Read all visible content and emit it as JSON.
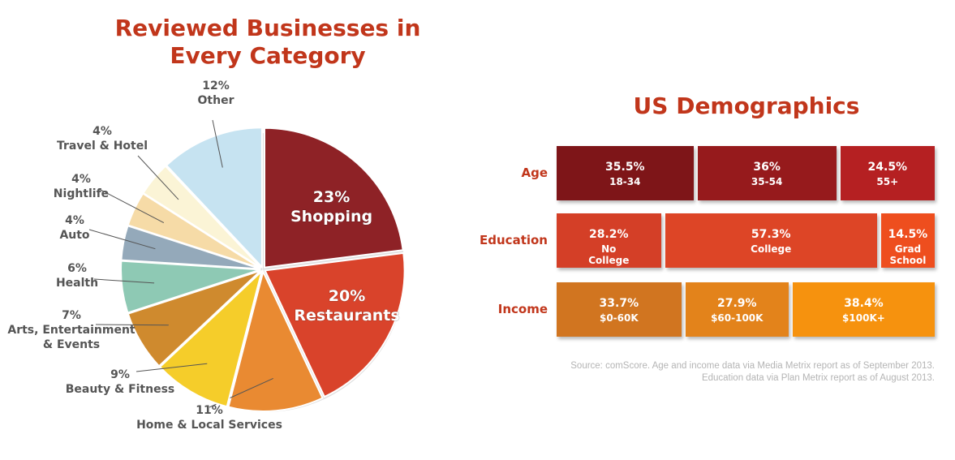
{
  "charts": {
    "categories": {
      "title": "Reviewed Businesses in Every Category"
    },
    "demographics": {
      "title": "US Demographics",
      "source": "Source: comScore. Age and income data via Media Metrix report as of September 2013. Education data via Plan Metrix report as of August 2013."
    }
  },
  "chart_data": [
    {
      "type": "pie",
      "title": "Reviewed Businesses in Every Category",
      "slices": [
        {
          "label": "Shopping",
          "value": 23,
          "pct_label": "23%",
          "color": "#8e2226"
        },
        {
          "label": "Restaurants",
          "value": 20,
          "pct_label": "20%",
          "color": "#d9432b"
        },
        {
          "label": "Home & Local Services",
          "value": 11,
          "pct_label": "11%",
          "color": "#e98a32"
        },
        {
          "label": "Beauty & Fitness",
          "value": 9,
          "pct_label": "9%",
          "color": "#f5cd2a"
        },
        {
          "label": "Arts, Entertainment & Events",
          "value": 7,
          "pct_label": "7%",
          "color": "#cf8a2e"
        },
        {
          "label": "Health",
          "value": 6,
          "pct_label": "6%",
          "color": "#8ec9b4"
        },
        {
          "label": "Auto",
          "value": 4,
          "pct_label": "4%",
          "color": "#94a9ba"
        },
        {
          "label": "Nightlife",
          "value": 4,
          "pct_label": "4%",
          "color": "#f6dba7"
        },
        {
          "label": "Travel & Hotel",
          "value": 4,
          "pct_label": "4%",
          "color": "#fbf4d6"
        },
        {
          "label": "Other",
          "value": 12,
          "pct_label": "12%",
          "color": "#c6e3f1"
        }
      ]
    },
    {
      "type": "bar",
      "title": "US Demographics",
      "rows": [
        {
          "label": "Age",
          "segments": [
            {
              "value": 35.5,
              "pct_label": "35.5%",
              "label": "18-34",
              "color": "#7e1518"
            },
            {
              "value": 36,
              "pct_label": "36%",
              "label": "35-54",
              "color": "#961a1c"
            },
            {
              "value": 24.5,
              "pct_label": "24.5%",
              "label": "55+",
              "color": "#b52022"
            }
          ]
        },
        {
          "label": "Education",
          "segments": [
            {
              "value": 28.2,
              "pct_label": "28.2%",
              "label": "No College",
              "color": "#d43f27"
            },
            {
              "value": 57.3,
              "pct_label": "57.3%",
              "label": "College",
              "color": "#dd4526"
            },
            {
              "value": 14.5,
              "pct_label": "14.5%",
              "label": "Grad School",
              "color": "#ee4e1e"
            }
          ]
        },
        {
          "label": "Income",
          "segments": [
            {
              "value": 33.7,
              "pct_label": "33.7%",
              "label": "$0-60K",
              "color": "#d17520"
            },
            {
              "value": 27.9,
              "pct_label": "27.9%",
              "label": "$60-100K",
              "color": "#e3831b"
            },
            {
              "value": 38.4,
              "pct_label": "38.4%",
              "label": "$100K+",
              "color": "#f6920e"
            }
          ]
        }
      ]
    }
  ]
}
